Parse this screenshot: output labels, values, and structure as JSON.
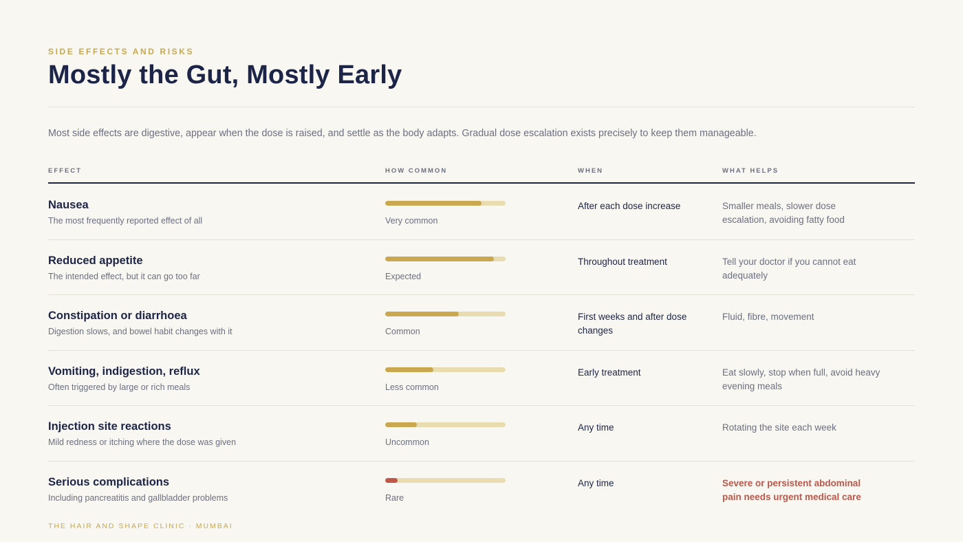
{
  "header": {
    "eyebrow": "SIDE EFFECTS AND RISKS",
    "title": "Mostly the Gut, Mostly Early"
  },
  "intro": "Most side effects are digestive, appear when the dose is raised, and settle as the body adapts. Gradual dose escalation exists precisely to keep them manageable.",
  "table": {
    "columns": [
      "EFFECT",
      "HOW COMMON",
      "WHEN",
      "WHAT HELPS"
    ],
    "level_range": [
      0,
      100
    ],
    "rows": [
      {
        "effect": "Nausea",
        "note": "The most frequently reported effect of all",
        "level": 80,
        "frequency": "Very common",
        "color": "#c9a84f",
        "when": "After each dose increase",
        "helps": "Smaller meals, slower dose escalation, avoiding fatty food",
        "alert": false
      },
      {
        "effect": "Reduced appetite",
        "note": "The intended effect, but it can go too far",
        "level": 90,
        "frequency": "Expected",
        "color": "#c9a84f",
        "when": "Throughout treatment",
        "helps": "Tell your doctor if you cannot eat adequately",
        "alert": false
      },
      {
        "effect": "Constipation or diarrhoea",
        "note": "Digestion slows, and bowel habit changes with it",
        "level": 61,
        "frequency": "Common",
        "color": "#c9a84f",
        "when": "First weeks and after dose changes",
        "helps": "Fluid, fibre, movement",
        "alert": false
      },
      {
        "effect": "Vomiting, indigestion, reflux",
        "note": "Often triggered by large or rich meals",
        "level": 40,
        "frequency": "Less common",
        "color": "#c9a84f",
        "when": "Early treatment",
        "helps": "Eat slowly, stop when full, avoid heavy evening meals",
        "alert": false
      },
      {
        "effect": "Injection site reactions",
        "note": "Mild redness or itching where the dose was given",
        "level": 26,
        "frequency": "Uncommon",
        "color": "#c9a84f",
        "when": "Any time",
        "helps": "Rotating the site each week",
        "alert": false
      },
      {
        "effect": "Serious complications",
        "note": "Including pancreatitis and gallbladder problems",
        "level": 10,
        "frequency": "Rare",
        "color": "#c0574a",
        "when": "Any time",
        "helps": "Severe or persistent abdominal pain needs urgent medical care",
        "alert": true
      }
    ]
  },
  "footer": "THE HAIR AND SHAPE CLINIC · MUMBAI"
}
